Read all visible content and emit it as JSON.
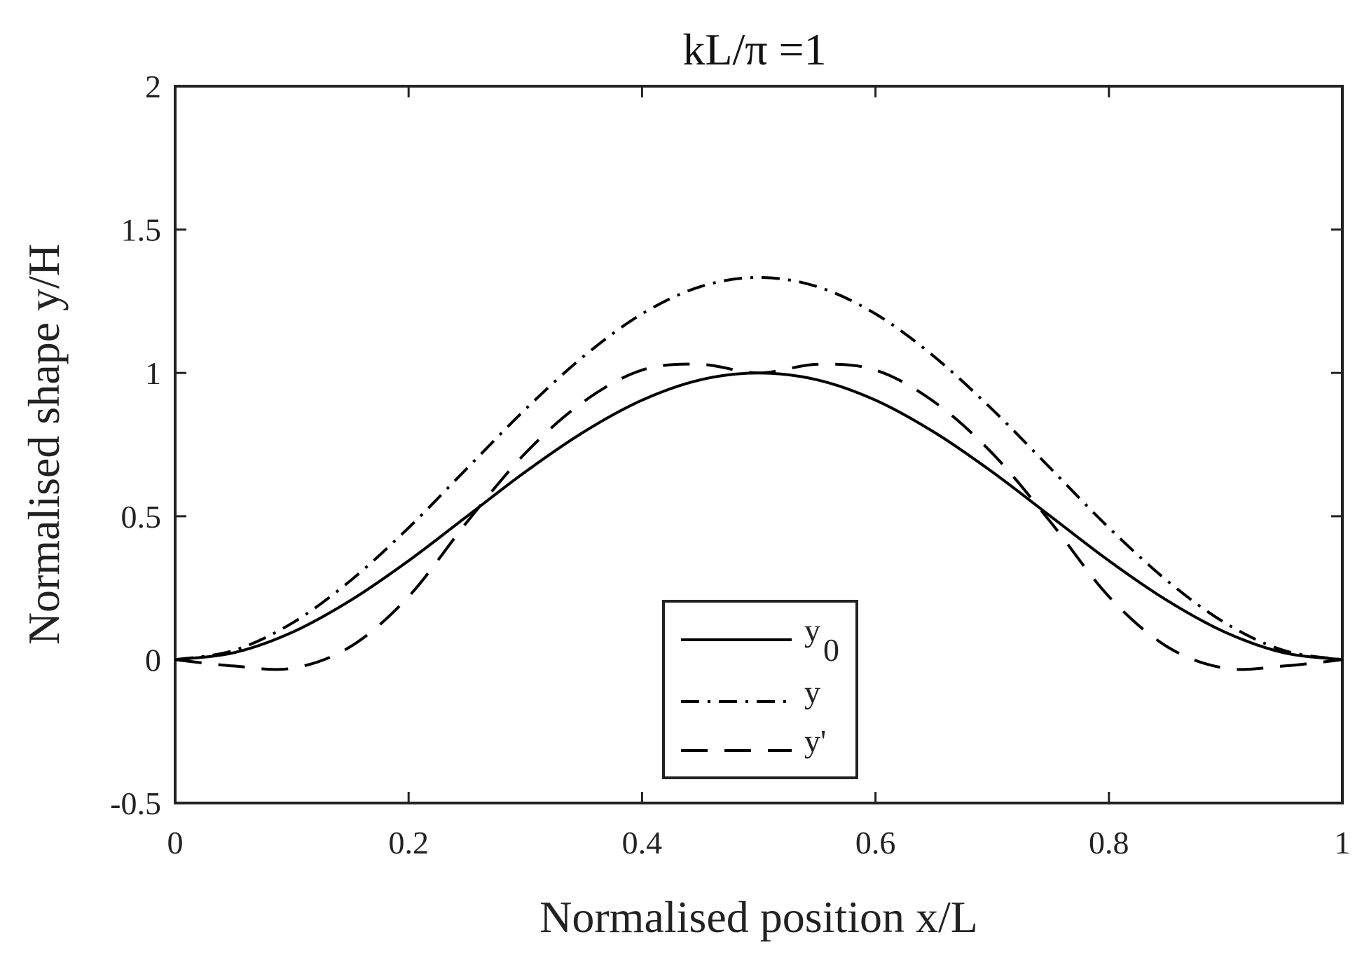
{
  "chart_data": {
    "type": "line",
    "title": "kL/π =1",
    "xlabel": "Normalised position x/L",
    "ylabel": "Normalised shape y/H",
    "xlim": [
      0,
      1
    ],
    "ylim": [
      -0.5,
      2
    ],
    "xticks": [
      0,
      0.2,
      0.4,
      0.6,
      0.8,
      1
    ],
    "xtick_labels": [
      "0",
      "0.2",
      "0.4",
      "0.6",
      "0.8",
      "1"
    ],
    "yticks": [
      -0.5,
      0,
      0.5,
      1,
      1.5,
      2
    ],
    "ytick_labels": [
      "-0.5",
      "0",
      "0.5",
      "1",
      "1.5",
      "2"
    ],
    "grid": false,
    "legend_position": "bottom-center",
    "x": [
      0,
      0.05,
      0.1,
      0.15,
      0.2,
      0.25,
      0.3,
      0.35,
      0.4,
      0.45,
      0.5,
      0.55,
      0.6,
      0.65,
      0.7,
      0.75,
      0.8,
      0.85,
      0.9,
      0.95,
      1
    ],
    "series": [
      {
        "name": "y0",
        "legend_base": "y",
        "legend_sub": "0",
        "style": "solid",
        "values": [
          0,
          0.024,
          0.095,
          0.206,
          0.345,
          0.5,
          0.655,
          0.794,
          0.905,
          0.976,
          1,
          0.976,
          0.905,
          0.794,
          0.655,
          0.5,
          0.345,
          0.206,
          0.095,
          0.024,
          0
        ]
      },
      {
        "name": "y",
        "legend_base": "y",
        "legend_sub": "",
        "style": "dashdot",
        "values": [
          0,
          0.032,
          0.127,
          0.275,
          0.46,
          0.667,
          0.873,
          1.058,
          1.206,
          1.301,
          1.333,
          1.301,
          1.206,
          1.058,
          0.873,
          0.667,
          0.46,
          0.275,
          0.127,
          0.032,
          0
        ]
      },
      {
        "name": "y'",
        "legend_base": "y'",
        "legend_sub": "",
        "style": "dashed",
        "values": [
          0,
          -0.022,
          -0.03,
          0.045,
          0.22,
          0.48,
          0.72,
          0.9,
          1.01,
          1.03,
          1.0,
          1.03,
          1.01,
          0.9,
          0.72,
          0.48,
          0.22,
          0.045,
          -0.03,
          -0.022,
          0
        ]
      }
    ]
  }
}
